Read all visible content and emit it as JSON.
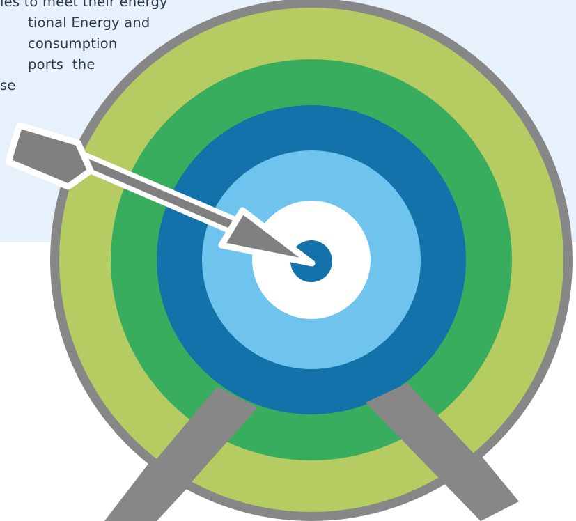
{
  "intro": {
    "lines": [
      "ies to meet their energy",
      "tional Energy and",
      "consumption",
      "ports  the",
      "se"
    ]
  },
  "colors": {
    "background_panel": "#e6f1fb",
    "stand_and_frame": "#878787",
    "ring_lime": "#b4cc62",
    "ring_green": "#37ad5d",
    "ring_dark_blue": "#1372aa",
    "ring_light_blue": "#6fc4ed",
    "ring_white": "#ffffff",
    "bullseye": "#1372aa",
    "arrow": "#808080",
    "arrow_outline": "#ffffff"
  }
}
